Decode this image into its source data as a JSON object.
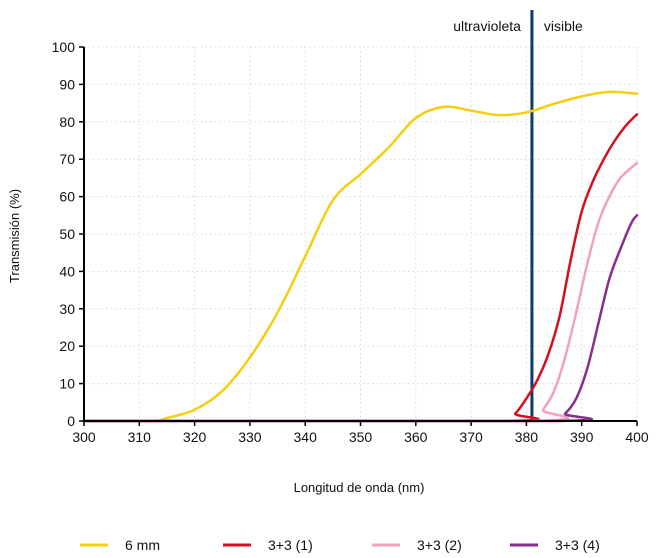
{
  "chart_data": {
    "type": "line",
    "xlabel": "Longitud de onda (nm)",
    "ylabel": "Transmisión (%)",
    "xlim": [
      300,
      400
    ],
    "ylim": [
      0,
      100
    ],
    "xticks": [
      300,
      310,
      320,
      330,
      340,
      350,
      360,
      370,
      380,
      390,
      400
    ],
    "yticks": [
      0,
      10,
      20,
      30,
      40,
      50,
      60,
      70,
      80,
      90,
      100
    ],
    "grid": true,
    "legend_position": "bottom",
    "divider": {
      "x": 381,
      "left_label": "ultravioleta",
      "right_label": "visible",
      "color": "#0b3a6e"
    },
    "series": [
      {
        "name": "6 mm",
        "color": "#f5cf0f",
        "x": [
          300,
          312,
          315,
          320,
          325,
          330,
          335,
          340,
          345,
          350,
          355,
          360,
          365,
          370,
          375,
          380,
          385,
          390,
          395,
          400
        ],
        "y": [
          0,
          0,
          0.8,
          3,
          8,
          17,
          29,
          44,
          59,
          66,
          73,
          81,
          84,
          83,
          81.8,
          82.5,
          84.8,
          86.8,
          88,
          87.5
        ]
      },
      {
        "name": "3+3 (1)",
        "color": "#d40f1f",
        "x": [
          300,
          376,
          378,
          380,
          382,
          384,
          386,
          388,
          390,
          392,
          394,
          396,
          398,
          400
        ],
        "y": [
          0,
          0,
          2,
          6,
          11,
          18,
          28,
          43,
          56,
          64,
          70,
          75,
          79,
          82
        ]
      },
      {
        "name": "3+3 (2)",
        "color": "#f0a0c0",
        "x": [
          300,
          381,
          383,
          385,
          387,
          389,
          391,
          393,
          395,
          397,
          400
        ],
        "y": [
          0,
          0,
          3,
          8,
          17,
          29,
          42,
          53,
          60,
          65,
          69
        ]
      },
      {
        "name": "3+3 (4)",
        "color": "#8a2e8c",
        "x": [
          300,
          385,
          387,
          389,
          391,
          393,
          395,
          397,
          399,
          400
        ],
        "y": [
          0,
          0,
          2,
          6,
          14,
          26,
          38,
          46,
          53,
          55
        ]
      }
    ]
  }
}
